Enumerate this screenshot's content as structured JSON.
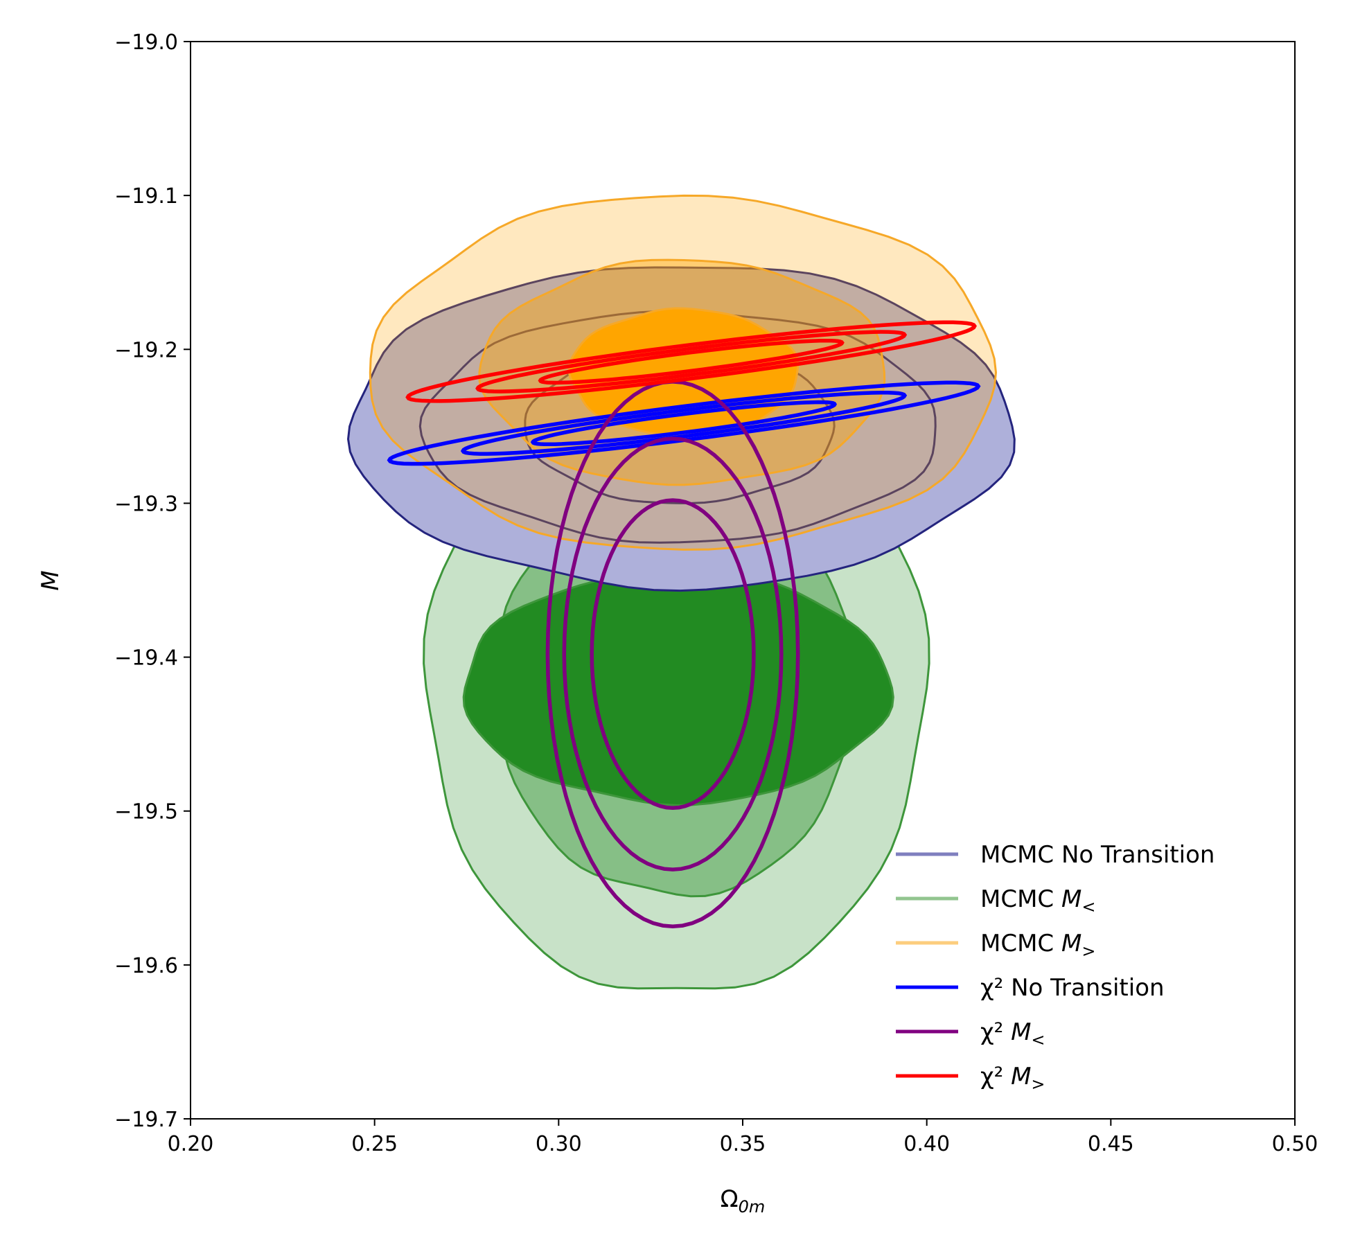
{
  "chart_data": {
    "type": "contour",
    "title": "",
    "xlabel": "Ω",
    "xlabel_sub": "0m",
    "ylabel": "M",
    "xlim": [
      0.2,
      0.5
    ],
    "ylim": [
      -19.7,
      -19.0
    ],
    "xticks": [
      0.2,
      0.25,
      0.3,
      0.35,
      0.4,
      0.45,
      0.5
    ],
    "yticks": [
      -19.7,
      -19.6,
      -19.5,
      -19.4,
      -19.3,
      -19.2,
      -19.1,
      -19.0
    ],
    "xtick_labels": [
      "0.20",
      "0.25",
      "0.30",
      "0.35",
      "0.40",
      "0.45",
      "0.50"
    ],
    "ytick_labels": [
      "−19.7",
      "−19.6",
      "−19.5",
      "−19.4",
      "−19.3",
      "−19.2",
      "−19.1",
      "−19.0"
    ],
    "legend_position": "lower-right",
    "legend": [
      {
        "main": "MCMC No Transition",
        "sub": "",
        "color": "#7f7fbf",
        "opacity": 1
      },
      {
        "main": "MCMC M",
        "sub": "<",
        "color": "#92c58f",
        "opacity": 1
      },
      {
        "main": "MCMC M",
        "sub": ">",
        "color": "#fccd7d",
        "opacity": 1
      },
      {
        "main": "χ² No Transition",
        "sub": "",
        "color": "#0000ff",
        "opacity": 1
      },
      {
        "main": "χ² M",
        "sub": "<",
        "color": "#800080",
        "opacity": 1
      },
      {
        "main": "χ² M",
        "sub": ">",
        "color": "#ff0000",
        "opacity": 1
      }
    ],
    "series": [
      {
        "name": "MCMC M<",
        "kind": "filled",
        "edge_color": "#3e963b",
        "fill_color": "#228b22",
        "fill_opacity": [
          0.25,
          0.4,
          1.0
        ],
        "center": [
          0.332,
          -19.42
        ],
        "levels": [
          [
            0.068,
            0.2
          ],
          [
            0.049,
            0.135
          ],
          [
            0.058,
            0.075
          ]
        ]
      },
      {
        "name": "MCMC No Transition",
        "kind": "filled",
        "edge_color": "#24247e",
        "fill_color": "#aeb0da",
        "fill_opacity": [
          1.0,
          0,
          0
        ],
        "center": [
          0.333,
          -19.25
        ],
        "levels": [
          [
            0.09,
            0.105
          ],
          [
            0.07,
            0.075
          ],
          [
            0.042,
            0.05
          ]
        ]
      },
      {
        "name": "MCMC M>",
        "kind": "filled",
        "edge_color": "#f6a828",
        "fill_color": "#ffa500",
        "fill_opacity": [
          0.25,
          0.4,
          1.0
        ],
        "center": [
          0.334,
          -19.215
        ],
        "levels": [
          [
            0.085,
            0.115
          ],
          [
            0.055,
            0.073
          ],
          [
            0.031,
            0.041
          ]
        ]
      },
      {
        "name": "χ² No Transition",
        "kind": "ellipse",
        "color": "#0000ff",
        "center": [
          0.334,
          -19.248
        ],
        "slope": 0.3,
        "levels": [
          [
            0.08,
            0.011
          ],
          [
            0.06,
            0.0085
          ],
          [
            0.041,
            0.006
          ]
        ]
      },
      {
        "name": "χ² M<",
        "kind": "ellipse",
        "color": "#800080",
        "center": [
          0.331,
          -19.398
        ],
        "slope": 0,
        "levels": [
          [
            0.034,
            0.177
          ],
          [
            0.0295,
            0.14
          ],
          [
            0.022,
            0.1
          ]
        ]
      },
      {
        "name": "χ² M>",
        "kind": "ellipse",
        "color": "#ff0000",
        "center": [
          0.336,
          -19.208
        ],
        "slope": 0.3,
        "levels": [
          [
            0.077,
            0.011
          ],
          [
            0.058,
            0.0085
          ],
          [
            0.041,
            0.006
          ]
        ]
      }
    ]
  }
}
